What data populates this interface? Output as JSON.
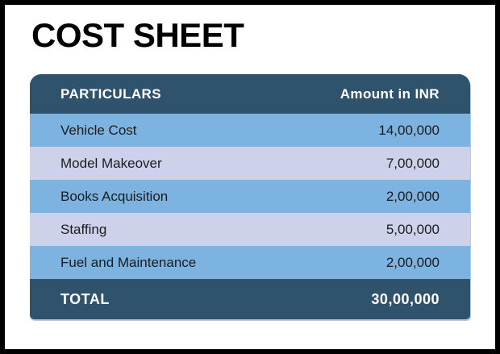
{
  "page": {
    "title": "COST SHEET"
  },
  "table": {
    "columns": [
      "PARTICULARS",
      "Amount in INR"
    ],
    "rows": [
      {
        "label": "Vehicle Cost",
        "amount": "14,00,000"
      },
      {
        "label": "Model Makeover",
        "amount": "7,00,000"
      },
      {
        "label": "Books Acquisition",
        "amount": "2,00,000"
      },
      {
        "label": "Staffing",
        "amount": "5,00,000"
      },
      {
        "label": "Fuel and Maintenance",
        "amount": "2,00,000"
      }
    ],
    "total": {
      "label": "TOTAL",
      "amount": "30,00,000"
    }
  },
  "chart_data": {
    "type": "table",
    "title": "COST SHEET",
    "columns": [
      "PARTICULARS",
      "Amount in INR"
    ],
    "categories": [
      "Vehicle Cost",
      "Model Makeover",
      "Books Acquisition",
      "Staffing",
      "Fuel and Maintenance"
    ],
    "values": [
      1400000,
      700000,
      200000,
      500000,
      200000
    ],
    "values_display": [
      "14,00,000",
      "7,00,000",
      "2,00,000",
      "5,00,000",
      "2,00,000"
    ],
    "total": 3000000,
    "total_display": "30,00,000",
    "currency": "INR"
  },
  "colors": {
    "frame_border": "#000000",
    "background": "#ffffff",
    "header_bg": "#2F536C",
    "total_bg": "#2F536C",
    "row_blue": "#7CB3E0",
    "row_lavender": "#CDD1EA",
    "header_text": "#ffffff",
    "row_text": "#1c1c1e"
  }
}
